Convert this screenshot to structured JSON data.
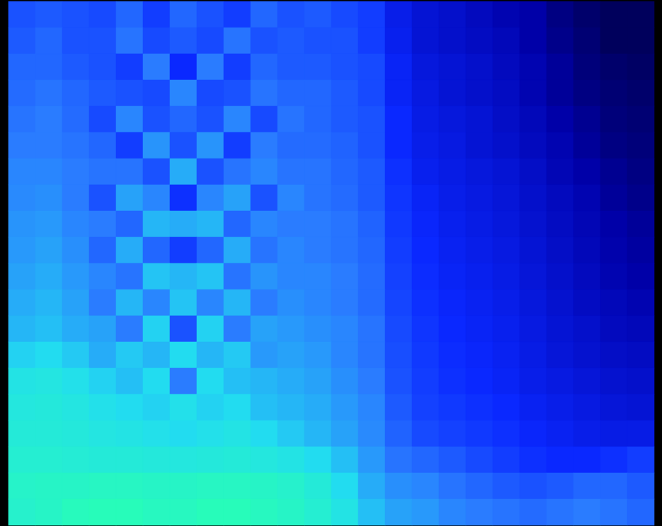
{
  "chart_data": {
    "type": "heatmap",
    "tick_labels": false,
    "zlim": [
      0,
      1
    ],
    "cells": [
      [
        0.5,
        0.52,
        0.5,
        0.48,
        0.55,
        0.45,
        0.55,
        0.5,
        0.45,
        0.55,
        0.5,
        0.52,
        0.48,
        0.45,
        0.35,
        0.3,
        0.28,
        0.25,
        0.22,
        0.2,
        0.15,
        0.12,
        0.1,
        0.1
      ],
      [
        0.52,
        0.55,
        0.5,
        0.5,
        0.58,
        0.48,
        0.52,
        0.48,
        0.58,
        0.5,
        0.52,
        0.5,
        0.5,
        0.45,
        0.36,
        0.3,
        0.28,
        0.26,
        0.24,
        0.2,
        0.16,
        0.13,
        0.1,
        0.1
      ],
      [
        0.55,
        0.55,
        0.52,
        0.5,
        0.45,
        0.6,
        0.4,
        0.6,
        0.45,
        0.55,
        0.52,
        0.52,
        0.5,
        0.48,
        0.38,
        0.32,
        0.3,
        0.28,
        0.25,
        0.22,
        0.18,
        0.14,
        0.12,
        0.11
      ],
      [
        0.56,
        0.58,
        0.55,
        0.52,
        0.5,
        0.48,
        0.62,
        0.48,
        0.5,
        0.58,
        0.55,
        0.55,
        0.52,
        0.48,
        0.38,
        0.33,
        0.3,
        0.28,
        0.26,
        0.22,
        0.18,
        0.15,
        0.13,
        0.12
      ],
      [
        0.58,
        0.6,
        0.56,
        0.48,
        0.62,
        0.5,
        0.55,
        0.5,
        0.62,
        0.48,
        0.58,
        0.55,
        0.52,
        0.5,
        0.4,
        0.34,
        0.32,
        0.3,
        0.27,
        0.24,
        0.2,
        0.17,
        0.14,
        0.13
      ],
      [
        0.6,
        0.6,
        0.58,
        0.55,
        0.45,
        0.65,
        0.5,
        0.65,
        0.45,
        0.6,
        0.56,
        0.56,
        0.54,
        0.5,
        0.4,
        0.35,
        0.33,
        0.3,
        0.28,
        0.25,
        0.22,
        0.18,
        0.15,
        0.14
      ],
      [
        0.62,
        0.62,
        0.6,
        0.58,
        0.58,
        0.5,
        0.7,
        0.5,
        0.58,
        0.62,
        0.58,
        0.58,
        0.55,
        0.52,
        0.42,
        0.36,
        0.34,
        0.32,
        0.3,
        0.27,
        0.23,
        0.2,
        0.17,
        0.15
      ],
      [
        0.63,
        0.64,
        0.6,
        0.5,
        0.68,
        0.62,
        0.42,
        0.62,
        0.68,
        0.5,
        0.62,
        0.58,
        0.56,
        0.52,
        0.43,
        0.38,
        0.35,
        0.33,
        0.31,
        0.28,
        0.25,
        0.22,
        0.18,
        0.16
      ],
      [
        0.65,
        0.66,
        0.62,
        0.6,
        0.55,
        0.72,
        0.7,
        0.72,
        0.55,
        0.62,
        0.6,
        0.6,
        0.58,
        0.54,
        0.44,
        0.39,
        0.36,
        0.34,
        0.32,
        0.29,
        0.26,
        0.23,
        0.2,
        0.18
      ],
      [
        0.66,
        0.68,
        0.64,
        0.55,
        0.7,
        0.55,
        0.45,
        0.55,
        0.7,
        0.58,
        0.62,
        0.6,
        0.58,
        0.55,
        0.45,
        0.4,
        0.37,
        0.35,
        0.33,
        0.3,
        0.27,
        0.24,
        0.21,
        0.19
      ],
      [
        0.68,
        0.7,
        0.66,
        0.62,
        0.58,
        0.75,
        0.72,
        0.75,
        0.58,
        0.65,
        0.62,
        0.62,
        0.6,
        0.56,
        0.46,
        0.41,
        0.38,
        0.36,
        0.34,
        0.31,
        0.28,
        0.25,
        0.22,
        0.2
      ],
      [
        0.7,
        0.72,
        0.68,
        0.6,
        0.72,
        0.62,
        0.75,
        0.62,
        0.72,
        0.6,
        0.64,
        0.62,
        0.6,
        0.56,
        0.47,
        0.42,
        0.39,
        0.37,
        0.35,
        0.32,
        0.29,
        0.26,
        0.24,
        0.22
      ],
      [
        0.72,
        0.74,
        0.7,
        0.68,
        0.6,
        0.78,
        0.5,
        0.78,
        0.6,
        0.68,
        0.66,
        0.64,
        0.62,
        0.58,
        0.48,
        0.43,
        0.4,
        0.38,
        0.36,
        0.33,
        0.3,
        0.28,
        0.25,
        0.24
      ],
      [
        0.78,
        0.8,
        0.76,
        0.7,
        0.76,
        0.72,
        0.8,
        0.72,
        0.76,
        0.66,
        0.68,
        0.66,
        0.62,
        0.58,
        0.49,
        0.44,
        0.41,
        0.39,
        0.37,
        0.34,
        0.31,
        0.29,
        0.27,
        0.26
      ],
      [
        0.84,
        0.85,
        0.82,
        0.78,
        0.74,
        0.8,
        0.6,
        0.8,
        0.74,
        0.72,
        0.7,
        0.68,
        0.64,
        0.6,
        0.5,
        0.45,
        0.42,
        0.4,
        0.38,
        0.35,
        0.33,
        0.31,
        0.29,
        0.28
      ],
      [
        0.86,
        0.87,
        0.85,
        0.82,
        0.8,
        0.78,
        0.82,
        0.78,
        0.8,
        0.74,
        0.72,
        0.7,
        0.66,
        0.62,
        0.52,
        0.46,
        0.44,
        0.42,
        0.4,
        0.37,
        0.35,
        0.33,
        0.31,
        0.3
      ],
      [
        0.88,
        0.88,
        0.87,
        0.85,
        0.84,
        0.82,
        0.8,
        0.82,
        0.84,
        0.8,
        0.76,
        0.72,
        0.68,
        0.63,
        0.54,
        0.48,
        0.46,
        0.44,
        0.42,
        0.39,
        0.37,
        0.35,
        0.34,
        0.34
      ],
      [
        0.9,
        0.9,
        0.89,
        0.88,
        0.88,
        0.87,
        0.86,
        0.87,
        0.88,
        0.86,
        0.84,
        0.8,
        0.74,
        0.66,
        0.58,
        0.55,
        0.52,
        0.48,
        0.45,
        0.42,
        0.4,
        0.4,
        0.42,
        0.45
      ],
      [
        0.93,
        0.94,
        0.94,
        0.95,
        0.95,
        0.94,
        0.94,
        0.95,
        0.95,
        0.94,
        0.92,
        0.88,
        0.8,
        0.7,
        0.64,
        0.62,
        0.58,
        0.55,
        0.52,
        0.5,
        0.52,
        0.55,
        0.55,
        0.52
      ],
      [
        0.92,
        0.94,
        0.97,
        0.98,
        0.98,
        0.96,
        0.96,
        0.98,
        0.98,
        0.96,
        0.94,
        0.9,
        0.84,
        0.74,
        0.68,
        0.66,
        0.62,
        0.6,
        0.58,
        0.56,
        0.58,
        0.6,
        0.58,
        0.55
      ]
    ]
  }
}
